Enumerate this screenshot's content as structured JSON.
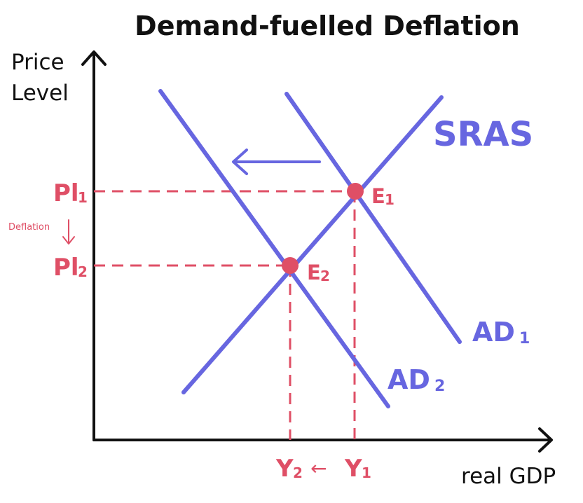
{
  "title": "Demand-fuelled Deflation",
  "axes": {
    "y_label_line1": "Price",
    "y_label_line2": "Level",
    "x_label": "real GDP"
  },
  "curves": {
    "sras": "SRAS",
    "ad1_main": "AD",
    "ad1_sub": "1",
    "ad2_main": "AD",
    "ad2_sub": "2"
  },
  "points": {
    "e1_main": "E",
    "e1_sub": "1",
    "e2_main": "E",
    "e2_sub": "2"
  },
  "price_levels": {
    "pl1_main": "Pl",
    "pl1_sub": "1",
    "pl2_main": "Pl",
    "pl2_sub": "2",
    "deflation_label": "Deflation"
  },
  "output_levels": {
    "y2_main": "Y",
    "y2_sub": "2",
    "arrow": "←",
    "y1_main": "Y",
    "y1_sub": "1"
  },
  "colors": {
    "curve": "#6766e0",
    "highlight": "#df4f66",
    "axis": "#111111"
  }
}
